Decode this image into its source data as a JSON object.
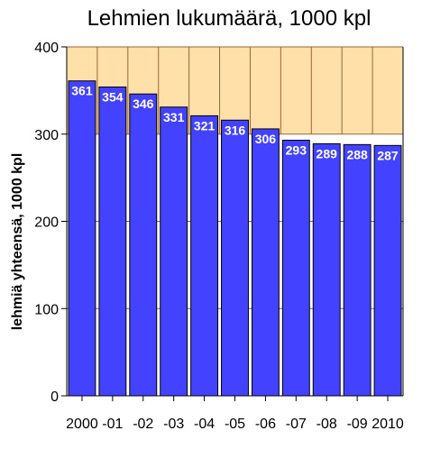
{
  "chart_data": {
    "type": "bar",
    "title": "Lehmien lukumäärä, 1000 kpl",
    "ylabel": "lehmiä yhteensä, 1000 kpl",
    "xlabel": "",
    "categories": [
      "2000",
      "-01",
      "-02",
      "-03",
      "-04",
      "-05",
      "-06",
      "-07",
      "-08",
      "-09",
      "2010"
    ],
    "values": [
      361,
      354,
      346,
      331,
      321,
      316,
      306,
      293,
      289,
      288,
      287
    ],
    "ylim": [
      0,
      400
    ],
    "yticks": [
      "0",
      "100",
      "200",
      "300",
      "400"
    ],
    "grid": true,
    "colors": {
      "bar": "#4343ff",
      "bar_stroke": "#000000",
      "plot_bg_upper": "#ffe0a8",
      "plot_bg_lower": "#ffffff",
      "grid": "#996633",
      "data_label": "#ffffff"
    }
  }
}
